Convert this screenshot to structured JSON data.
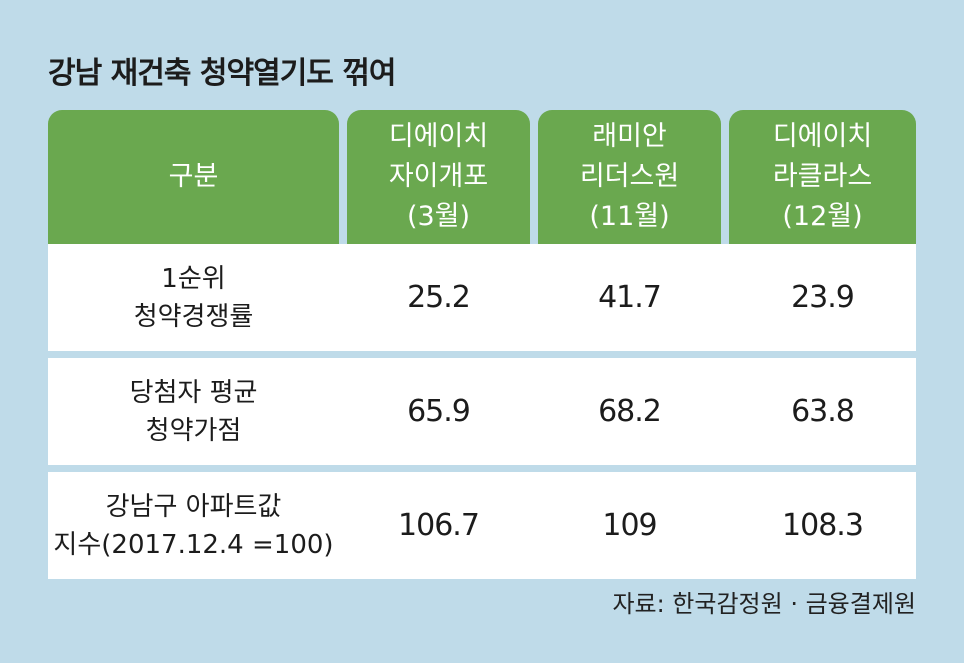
{
  "title": "강남 재건축 청약열기도 꺾여",
  "source": "자료: 한국감정원 · 금융결제원",
  "chart_data": {
    "type": "table",
    "columns": [
      {
        "lines": [
          "구분"
        ]
      },
      {
        "lines": [
          "디에이치",
          "자이개포",
          "(3월)"
        ]
      },
      {
        "lines": [
          "래미안",
          "리더스원",
          "(11월)"
        ]
      },
      {
        "lines": [
          "디에이치",
          "라클라스",
          "(12월)"
        ]
      }
    ],
    "rows": [
      {
        "label_lines": [
          "1순위",
          "청약경쟁률"
        ],
        "values": [
          "25.2",
          "41.7",
          "23.9"
        ]
      },
      {
        "label_lines": [
          "당첨자 평균",
          "청약가점"
        ],
        "values": [
          "65.9",
          "68.2",
          "63.8"
        ]
      },
      {
        "label_lines": [
          "강남구 아파트값",
          "지수(2017.12.4 =100)"
        ],
        "values": [
          "106.7",
          "109",
          "108.3"
        ]
      }
    ]
  }
}
